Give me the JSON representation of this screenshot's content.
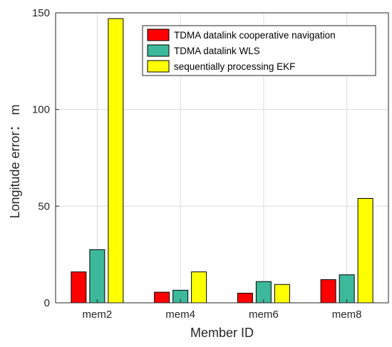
{
  "chart_data": {
    "type": "bar",
    "categories": [
      "mem2",
      "mem4",
      "mem6",
      "mem8"
    ],
    "series": [
      {
        "name": "TDMA datalink cooperative navigation",
        "color": "#ff0000",
        "values": [
          16,
          5.5,
          5,
          12
        ]
      },
      {
        "name": "TDMA datalink WLS",
        "color": "#3cb99a",
        "values": [
          27.5,
          6.5,
          11,
          14.5
        ]
      },
      {
        "name": "sequentially processing EKF",
        "color": "#ffff00",
        "values": [
          147,
          16,
          9.5,
          54
        ]
      }
    ],
    "title": "",
    "xlabel": "Member ID",
    "ylabel": "Longitude error： m",
    "ylim": [
      0,
      150
    ],
    "yticks": [
      "0",
      "50",
      "100",
      "150"
    ],
    "grid": true,
    "legend": "top-right"
  }
}
